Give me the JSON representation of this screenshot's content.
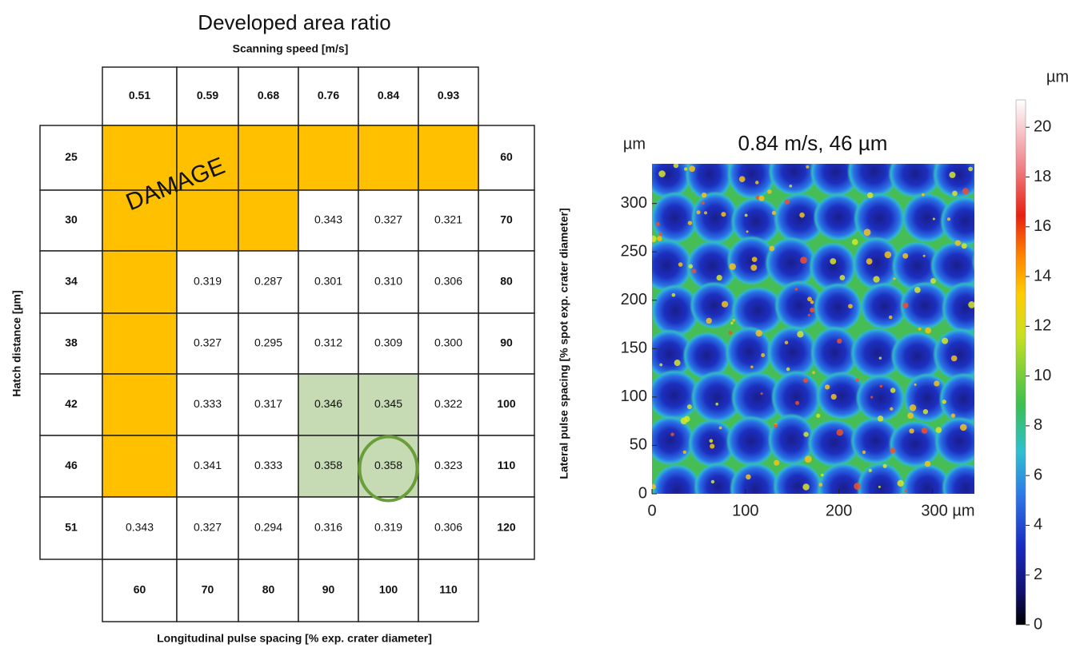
{
  "table": {
    "title": "Developed area ratio",
    "column_header": "Scanning speed [m/s]",
    "row_header": "Hatch distance [µm]",
    "right_header": "Lateral pulse spacing [% spot exp. crater diameter]",
    "bottom_header": "Longitudinal pulse spacing [% exp. crater diameter]",
    "top_labels": [
      "0.51",
      "0.59",
      "0.68",
      "0.76",
      "0.84",
      "0.93"
    ],
    "bottom_labels": [
      "60",
      "70",
      "80",
      "90",
      "100",
      "110"
    ],
    "rows": [
      {
        "hatch": "25",
        "lateral": "60",
        "cells": [
          null,
          null,
          null,
          null,
          null,
          null
        ]
      },
      {
        "hatch": "30",
        "lateral": "70",
        "cells": [
          null,
          null,
          null,
          "0.343",
          "0.327",
          "0.321"
        ]
      },
      {
        "hatch": "34",
        "lateral": "80",
        "cells": [
          null,
          "0.319",
          "0.287",
          "0.301",
          "0.310",
          "0.306"
        ]
      },
      {
        "hatch": "38",
        "lateral": "90",
        "cells": [
          null,
          "0.327",
          "0.295",
          "0.312",
          "0.309",
          "0.300"
        ]
      },
      {
        "hatch": "42",
        "lateral": "100",
        "cells": [
          null,
          "0.333",
          "0.317",
          "0.346",
          "0.345",
          "0.322"
        ]
      },
      {
        "hatch": "46",
        "lateral": "110",
        "cells": [
          null,
          "0.341",
          "0.333",
          "0.358",
          "0.358",
          "0.323"
        ]
      },
      {
        "hatch": "51",
        "lateral": "120",
        "cells": [
          "0.343",
          "0.327",
          "0.294",
          "0.316",
          "0.319",
          "0.306"
        ]
      }
    ],
    "damage_label": "DAMAGE",
    "damage_color": "#ffc000",
    "highlight_color": "#c6dbb4",
    "highlight_cells": [
      [
        4,
        3
      ],
      [
        4,
        4
      ],
      [
        5,
        3
      ],
      [
        5,
        4
      ]
    ],
    "circled_cell": [
      5,
      4
    ],
    "circle_color": "#6a9e3a"
  },
  "surface": {
    "title": "0.84 m/s, 46 µm",
    "y_unit": "µm",
    "xlim": [
      0,
      345
    ],
    "ylim": [
      0,
      341
    ],
    "xticks": [
      0,
      100,
      200,
      {
        "value": 300,
        "label": "300 µm"
      }
    ],
    "yticks": [
      0,
      50,
      100,
      150,
      200,
      250,
      300
    ],
    "colorbar": {
      "label": "µm",
      "lim": [
        0,
        21.1
      ],
      "ticks": [
        0,
        2,
        4,
        6,
        8,
        10,
        12,
        14,
        16,
        18,
        20
      ]
    }
  }
}
